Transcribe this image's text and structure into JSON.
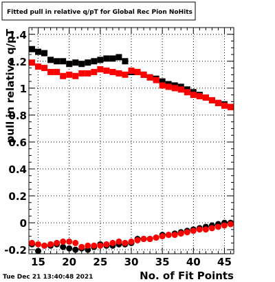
{
  "chart_data": {
    "type": "scatter",
    "title": "Fitted pull in relative q/pT for Global Rec Pion NoHits",
    "xlabel": "No. of Fit Points",
    "ylabel": "pull in relative q/pT",
    "footer": "Tue Dec 21 13:40:48 2021",
    "xlim": [
      13.5,
      46.5
    ],
    "ylim": [
      -0.23,
      1.45
    ],
    "x_ticks": [
      15,
      20,
      25,
      30,
      35,
      40,
      45
    ],
    "y_ticks": [
      -0.2,
      0,
      0.2,
      0.4,
      0.6,
      0.8,
      1,
      1.2,
      1.4
    ],
    "x_tick_labels": [
      "15",
      "20",
      "25",
      "30",
      "35",
      "40",
      "45"
    ],
    "y_tick_labels": [
      "-0.2",
      "0",
      "0.2",
      "0.4",
      "0.6",
      "0.8",
      "1",
      "1.2",
      "1.4"
    ],
    "grid": true,
    "x": [
      14,
      15,
      16,
      17,
      18,
      19,
      20,
      21,
      22,
      23,
      24,
      25,
      26,
      27,
      28,
      29,
      30,
      31,
      32,
      33,
      34,
      35,
      36,
      37,
      38,
      39,
      40,
      41,
      42,
      43,
      44,
      45,
      46
    ],
    "series": [
      {
        "color": "#000000",
        "values": [
          1.29,
          1.27,
          1.26,
          1.21,
          1.2,
          1.2,
          1.18,
          1.19,
          1.18,
          1.19,
          1.2,
          1.21,
          1.22,
          1.22,
          1.23,
          1.2,
          1.12,
          1.12,
          1.1,
          1.08,
          1.07,
          1.05,
          1.03,
          1.02,
          1.01,
          0.99,
          0.97,
          0.95,
          0.93,
          0.91,
          0.89,
          0.88,
          0.86
        ]
      },
      {
        "color": "#ff0000",
        "values": [
          1.19,
          1.16,
          1.15,
          1.12,
          1.12,
          1.09,
          1.1,
          1.09,
          1.11,
          1.11,
          1.12,
          1.14,
          1.13,
          1.12,
          1.11,
          1.1,
          1.13,
          1.12,
          1.1,
          1.08,
          1.06,
          1.02,
          1.01,
          1.0,
          0.99,
          0.97,
          0.95,
          0.94,
          0.93,
          0.91,
          0.89,
          0.87,
          0.86
        ]
      },
      {
        "color": "#000000",
        "values": [
          -0.16,
          -0.21,
          -0.17,
          -0.17,
          -0.16,
          -0.18,
          -0.19,
          -0.2,
          -0.19,
          -0.2,
          -0.18,
          -0.16,
          -0.17,
          -0.17,
          -0.16,
          -0.16,
          -0.15,
          -0.12,
          -0.12,
          -0.12,
          -0.11,
          -0.09,
          -0.09,
          -0.08,
          -0.07,
          -0.06,
          -0.05,
          -0.04,
          -0.03,
          -0.02,
          -0.01,
          0.0,
          0.0
        ]
      },
      {
        "color": "#ff0000",
        "values": [
          -0.15,
          -0.16,
          -0.17,
          -0.16,
          -0.15,
          -0.14,
          -0.14,
          -0.15,
          -0.18,
          -0.17,
          -0.17,
          -0.17,
          -0.16,
          -0.15,
          -0.14,
          -0.15,
          -0.14,
          -0.13,
          -0.12,
          -0.12,
          -0.11,
          -0.1,
          -0.09,
          -0.09,
          -0.08,
          -0.07,
          -0.06,
          -0.05,
          -0.05,
          -0.04,
          -0.03,
          -0.02,
          -0.01
        ]
      }
    ]
  }
}
